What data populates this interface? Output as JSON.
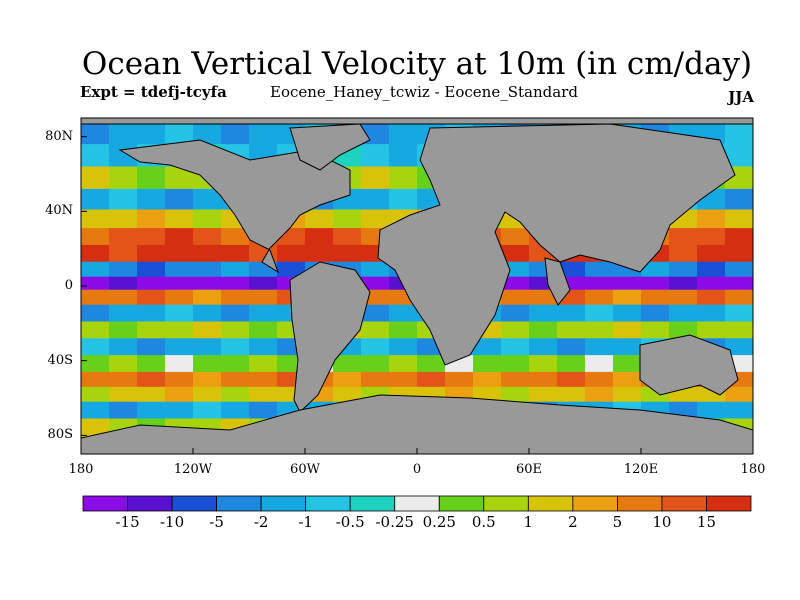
{
  "chart_data": {
    "type": "heatmap",
    "title": "Ocean Vertical Velocity at 10m (in cm/day)",
    "experiment": "Expt = tdefj-tcyfa",
    "comparison": "Eocene_Haney_tcwiz - Eocene_Standard",
    "season": "JJA",
    "x_ticks": [
      "180",
      "120W",
      "60W",
      "0",
      "60E",
      "120E",
      "180"
    ],
    "y_ticks": [
      "80N",
      "40N",
      "0",
      "40S",
      "80S"
    ],
    "xlim": [
      -180,
      180
    ],
    "ylim": [
      -90,
      90
    ],
    "land_color": "#999999",
    "colorbar": {
      "labels": [
        "-15",
        "-10",
        "-5",
        "-2",
        "-1",
        "-0.5",
        "-0.25",
        "0.25",
        "0.5",
        "1",
        "2",
        "5",
        "10",
        "15"
      ],
      "colors": [
        "#8c0ce8",
        "#5a10d0",
        "#1a50d6",
        "#1e88e0",
        "#16a8e0",
        "#26c4e4",
        "#1ed2c0",
        "#ececec",
        "#66d01a",
        "#a8d40e",
        "#d8c20a",
        "#eaa010",
        "#e67a10",
        "#e25418",
        "#d62e10"
      ]
    },
    "zonal_bands": [
      {
        "lat": 82,
        "level": 4
      },
      {
        "lat": 70,
        "level": 5
      },
      {
        "lat": 58,
        "level": 9
      },
      {
        "lat": 46,
        "level": 4
      },
      {
        "lat": 36,
        "level": 10
      },
      {
        "lat": 26,
        "level": 13
      },
      {
        "lat": 18,
        "level": 14
      },
      {
        "lat": 8,
        "level": 3
      },
      {
        "lat": 2,
        "level": 0
      },
      {
        "lat": -6,
        "level": 12
      },
      {
        "lat": -14,
        "level": 4
      },
      {
        "lat": -24,
        "level": 9
      },
      {
        "lat": -32,
        "level": 4
      },
      {
        "lat": -42,
        "level": 8
      },
      {
        "lat": -50,
        "level": 12
      },
      {
        "lat": -58,
        "level": 10
      },
      {
        "lat": -66,
        "level": 4
      },
      {
        "lat": -76,
        "level": 9
      }
    ]
  }
}
